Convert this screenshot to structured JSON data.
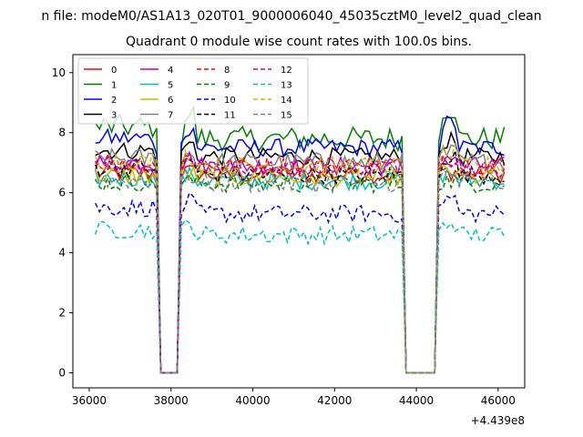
{
  "figure": {
    "suptitle": "n file: modeM0/AS1A13_020T01_9000006040_45035cztM0_level2_quad_clean",
    "offset_label": "+4.439e8"
  },
  "chart_data": {
    "type": "line",
    "title": "Quadrant 0 module wise count rates with 100.0s bins.",
    "xlabel": "",
    "ylabel": "",
    "xlim": [
      35600,
      46650
    ],
    "ylim": [
      -0.5,
      10.6
    ],
    "x_offset": 443900000,
    "x_ticks": [
      36000,
      38000,
      40000,
      42000,
      44000,
      46000
    ],
    "x_tick_labels": [
      "36000",
      "38000",
      "40000",
      "42000",
      "44000",
      "46000"
    ],
    "y_ticks": [
      0,
      2,
      4,
      6,
      8,
      10
    ],
    "y_tick_labels": [
      "0",
      "2",
      "4",
      "6",
      "8",
      "10"
    ],
    "grid": false,
    "legend_position": "top-left",
    "legend_columns": 4,
    "bin_width": 100,
    "x_range": [
      36150,
      46150
    ],
    "gaps": [
      [
        37650,
        38250
      ],
      [
        43650,
        44550
      ]
    ],
    "series": [
      {
        "name": "0",
        "color": "#ff0000",
        "dash": "solid",
        "level": 6.6,
        "noise": 0.3,
        "rise": 0.1
      },
      {
        "name": "1",
        "color": "#008000",
        "dash": "solid",
        "level": 7.8,
        "noise": 0.4,
        "rise": 1.0
      },
      {
        "name": "2",
        "color": "#0000ff",
        "dash": "solid",
        "level": 7.5,
        "noise": 0.3,
        "rise": 0.8
      },
      {
        "name": "3",
        "color": "#000000",
        "dash": "solid",
        "level": 7.2,
        "noise": 0.3,
        "rise": 0.5
      },
      {
        "name": "4",
        "color": "#bf00bf",
        "dash": "solid",
        "level": 6.9,
        "noise": 0.3,
        "rise": 0.3
      },
      {
        "name": "5",
        "color": "#00bfbf",
        "dash": "solid",
        "level": 6.4,
        "noise": 0.3,
        "rise": 0.2
      },
      {
        "name": "6",
        "color": "#bfbf00",
        "dash": "solid",
        "level": 6.5,
        "noise": 0.3,
        "rise": 0.2
      },
      {
        "name": "7",
        "color": "#808080",
        "dash": "solid",
        "level": 7.0,
        "noise": 0.35,
        "rise": 0.3
      },
      {
        "name": "8",
        "color": "#ff0000",
        "dash": "dashed",
        "level": 6.9,
        "noise": 0.3,
        "rise": 0.3
      },
      {
        "name": "9",
        "color": "#008000",
        "dash": "dashed",
        "level": 6.3,
        "noise": 0.3,
        "rise": 0.1
      },
      {
        "name": "10",
        "color": "#0000ff",
        "dash": "dashed",
        "level": 5.3,
        "noise": 0.3,
        "rise": 0.5
      },
      {
        "name": "11",
        "color": "#000000",
        "dash": "dashed",
        "level": 6.6,
        "noise": 0.3,
        "rise": 0.6
      },
      {
        "name": "12",
        "color": "#bf00bf",
        "dash": "dashed",
        "level": 6.8,
        "noise": 0.3,
        "rise": 0.3
      },
      {
        "name": "13",
        "color": "#00bfbf",
        "dash": "dashed",
        "level": 4.6,
        "noise": 0.3,
        "rise": 0.4
      },
      {
        "name": "14",
        "color": "#bfbf00",
        "dash": "dashed",
        "level": 6.9,
        "noise": 0.3,
        "rise": 0.4
      },
      {
        "name": "15",
        "color": "#808080",
        "dash": "dashed",
        "level": 6.3,
        "noise": 0.3,
        "rise": 0.3
      }
    ]
  }
}
